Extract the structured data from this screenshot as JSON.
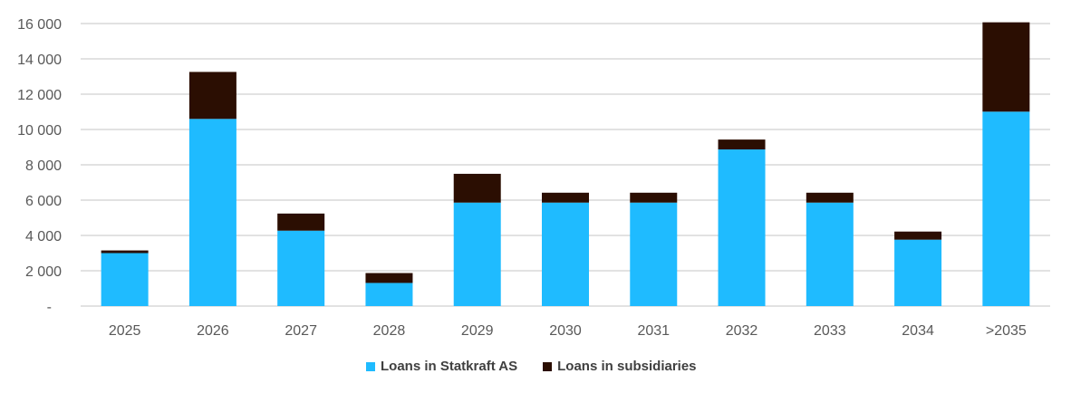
{
  "chart_data": {
    "type": "bar",
    "stacked": true,
    "categories": [
      "2025",
      "2026",
      "2027",
      "2028",
      "2029",
      "2030",
      "2031",
      "2032",
      "2033",
      "2034",
      ">2035"
    ],
    "series": [
      {
        "name": "Loans in Statkraft AS",
        "color": "#1FBBFF",
        "values": [
          3000,
          10600,
          4270,
          1310,
          5860,
          5860,
          5860,
          8870,
          5860,
          3760,
          11010
        ]
      },
      {
        "name": "Loans in subsidiaries",
        "color": "#2B0E02",
        "values": [
          150,
          2660,
          970,
          560,
          1630,
          560,
          560,
          560,
          560,
          460,
          5060
        ]
      }
    ],
    "ylim": [
      0,
      16000
    ],
    "yticks": [
      0,
      2000,
      4000,
      6000,
      8000,
      10000,
      12000,
      14000,
      16000
    ],
    "ytick_labels": [
      "-",
      "2 000",
      "4 000",
      "6 000",
      "8 000",
      "10 000",
      "12 000",
      "14 000",
      "16 000"
    ],
    "grid": true,
    "legend_position": "bottom",
    "title": "",
    "xlabel": "",
    "ylabel": ""
  }
}
